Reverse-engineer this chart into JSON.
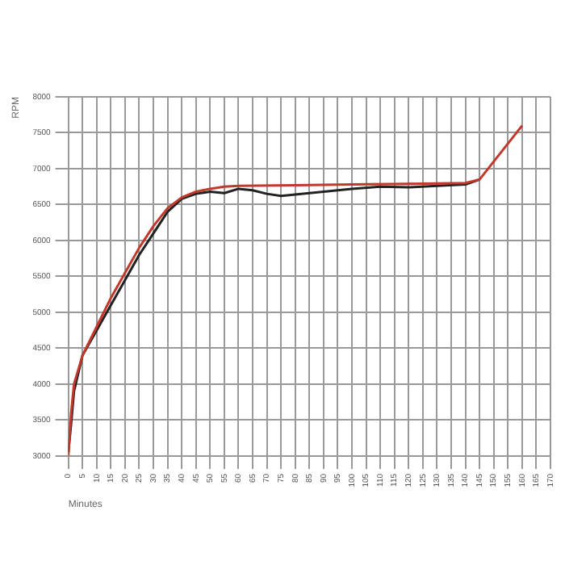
{
  "chart_data": {
    "type": "line",
    "ylabel": "RPM",
    "xlabel": "Minutes",
    "xlim": [
      0,
      170
    ],
    "xticks": [
      0,
      5,
      10,
      15,
      20,
      25,
      30,
      35,
      40,
      45,
      50,
      55,
      60,
      65,
      70,
      75,
      80,
      85,
      90,
      95,
      100,
      105,
      110,
      115,
      120,
      125,
      130,
      135,
      140,
      145,
      150,
      155,
      160,
      165,
      170
    ],
    "ylim": [
      3000,
      8000
    ],
    "yticks": [
      3000,
      3500,
      4000,
      4500,
      5000,
      5500,
      6000,
      6500,
      7000,
      7500,
      8000
    ],
    "grid": true,
    "legend": false,
    "marker": "none",
    "line_style": "solid",
    "series": [
      {
        "color": "#222222",
        "x": [
          0,
          1,
          2,
          5,
          10,
          15,
          20,
          25,
          30,
          35,
          40,
          45,
          50,
          55,
          60,
          65,
          70,
          75,
          80,
          90,
          100,
          110,
          120,
          130,
          140,
          145
        ],
        "values": [
          3050,
          3450,
          3900,
          4400,
          4750,
          5100,
          5450,
          5800,
          6100,
          6400,
          6580,
          6650,
          6680,
          6660,
          6720,
          6700,
          6650,
          6620,
          6640,
          6680,
          6720,
          6750,
          6740,
          6760,
          6780,
          6850
        ]
      },
      {
        "color": "#c0392b",
        "x": [
          0,
          1,
          2,
          5,
          10,
          15,
          20,
          25,
          30,
          35,
          40,
          45,
          50,
          55,
          60,
          80,
          100,
          120,
          140,
          145,
          150,
          155,
          160
        ],
        "values": [
          3000,
          3600,
          4000,
          4400,
          4800,
          5200,
          5550,
          5900,
          6200,
          6450,
          6600,
          6680,
          6720,
          6750,
          6760,
          6770,
          6780,
          6790,
          6800,
          6850,
          7100,
          7350,
          7600
        ]
      }
    ]
  }
}
